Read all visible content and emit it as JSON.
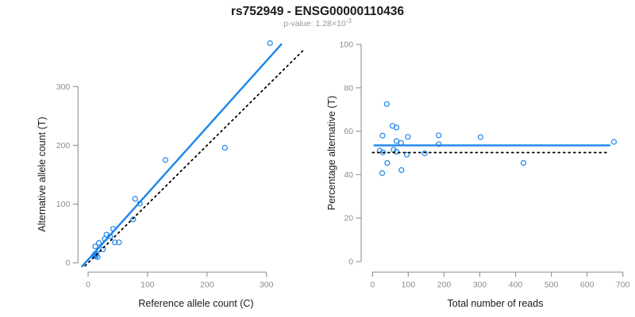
{
  "header": {
    "title": "rs752949 - ENSG00000110436",
    "pvalue_prefix": "p-value: 1.28×10",
    "pvalue_exponent": "-3"
  },
  "colors": {
    "accent_blue": "#1e85eb",
    "identity_black": "#000000",
    "axis_gray": "#999999",
    "tick_gray": "#8c8c8c"
  },
  "chart_data": [
    {
      "type": "scatter",
      "title": "",
      "xlabel": "Reference allele count (C)",
      "ylabel": "Alternative allele count (T)",
      "xticks": [
        0,
        100,
        200,
        300
      ],
      "yticks": [
        0,
        100,
        200,
        300
      ],
      "xlim": [
        -12,
        366
      ],
      "ylim": [
        -10,
        385
      ],
      "grid": false,
      "points": [
        [
          306,
          374
        ],
        [
          230,
          196
        ],
        [
          130,
          175
        ],
        [
          79,
          109
        ],
        [
          87,
          101
        ],
        [
          76,
          74
        ],
        [
          42,
          58
        ],
        [
          31,
          48
        ],
        [
          37,
          45
        ],
        [
          28,
          41
        ],
        [
          18,
          34
        ],
        [
          45,
          35
        ],
        [
          52,
          35
        ],
        [
          12,
          28
        ],
        [
          25,
          23
        ],
        [
          12,
          13
        ],
        [
          16,
          10
        ],
        [
          10,
          12
        ],
        [
          12,
          15
        ],
        [
          13,
          11
        ],
        [
          11,
          14
        ],
        [
          14,
          16
        ]
      ],
      "lines": [
        {
          "name": "regression-line",
          "style": "solid",
          "color_key": "accent_blue",
          "x1": -10,
          "y1": -6,
          "x2": 325,
          "y2": 372
        },
        {
          "name": "identity-line",
          "style": "dotted",
          "color_key": "identity_black",
          "x1": -5,
          "y1": -5,
          "x2": 361,
          "y2": 361
        }
      ]
    },
    {
      "type": "scatter",
      "title": "",
      "xlabel": "Total number of reads",
      "ylabel": "Percentage alternative (T)",
      "xticks": [
        0,
        100,
        200,
        300,
        400,
        500,
        600,
        700
      ],
      "yticks": [
        0,
        20,
        40,
        60,
        80,
        100
      ],
      "xlim": [
        -30,
        730
      ],
      "ylim": [
        0,
        100
      ],
      "grid": false,
      "points": [
        [
          40,
          72.5
        ],
        [
          56,
          62.5
        ],
        [
          67,
          61.7
        ],
        [
          28,
          58
        ],
        [
          99,
          57.4
        ],
        [
          185,
          58.1
        ],
        [
          67,
          55.5
        ],
        [
          80,
          54.6
        ],
        [
          185,
          54.1
        ],
        [
          20,
          51.1
        ],
        [
          29,
          50.3
        ],
        [
          59,
          51.5
        ],
        [
          67,
          50.6
        ],
        [
          96,
          49.2
        ],
        [
          146,
          49.8
        ],
        [
          302,
          57.3
        ],
        [
          41,
          45.4
        ],
        [
          81,
          42.1
        ],
        [
          27,
          40.7
        ],
        [
          422,
          45.4
        ],
        [
          675,
          55.1
        ]
      ],
      "lines": [
        {
          "name": "mean-line",
          "style": "solid",
          "color_key": "accent_blue",
          "x1": 5,
          "y1": 53.5,
          "x2": 663,
          "y2": 53.5
        },
        {
          "name": "expected-line",
          "style": "dotted",
          "color_key": "identity_black",
          "x1": 0,
          "y1": 50.2,
          "x2": 663,
          "y2": 50.2
        }
      ]
    }
  ]
}
